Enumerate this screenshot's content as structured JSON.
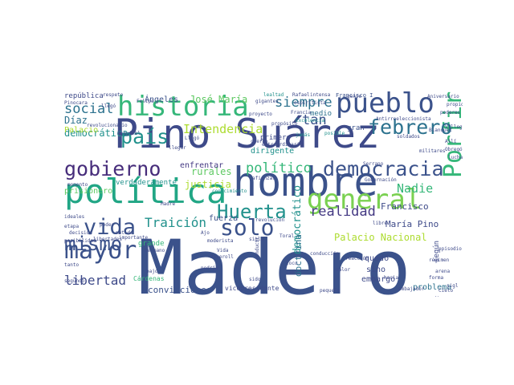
{
  "colors": {
    "palette": [
      "#3b528b",
      "#472d7b",
      "#21918c",
      "#2c728e",
      "#28ae80",
      "#5ec962",
      "#addc30",
      "#fde725"
    ],
    "background": "#ffffff"
  },
  "words": [
    {
      "text": "Madero",
      "color": "#3b528b"
    },
    {
      "text": "Pino Suárez",
      "color": "#3e4a89"
    },
    {
      "text": "hombre",
      "color": "#3b528b"
    },
    {
      "text": "política",
      "color": "#21a685"
    },
    {
      "text": "general",
      "color": "#7ad151"
    },
    {
      "text": "historia",
      "color": "#35b779"
    },
    {
      "text": "pueblo",
      "color": "#3b528b"
    },
    {
      "text": "mayor",
      "color": "#3b528b"
    },
    {
      "text": "gobierno",
      "color": "#472d7b"
    },
    {
      "text": "democracia",
      "color": "#3b528b"
    },
    {
      "text": "Porfirio",
      "color": "#35b779"
    },
    {
      "text": "solo",
      "color": "#3b528b"
    },
    {
      "text": "mismo",
      "color": "#3b528b"
    },
    {
      "text": "vida",
      "color": "#3b528b"
    },
    {
      "text": "Huerta",
      "color": "#21918c"
    },
    {
      "text": "febrero",
      "color": "#2c728e"
    },
    {
      "text": "país",
      "color": "#21918c"
    },
    {
      "text": "realidad",
      "color": "#443983"
    },
    {
      "text": "libertad",
      "color": "#3e4a89"
    },
    {
      "text": "siempre",
      "color": "#2c728e"
    },
    {
      "text": "político",
      "color": "#35b779"
    },
    {
      "text": "social",
      "color": "#2c728e"
    },
    {
      "text": "tan",
      "color": "#3b528b"
    },
    {
      "text": "Traición",
      "color": "#21918c"
    },
    {
      "text": "Intendencia",
      "color": "#addc30"
    },
    {
      "text": "Nadie",
      "color": "#35b779"
    },
    {
      "text": "José María",
      "color": "#5ec962"
    },
    {
      "text": "Palacio Nacional",
      "color": "#addc30"
    },
    {
      "text": "democrático",
      "color": "#21918c"
    },
    {
      "text": "justicia",
      "color": "#addc30"
    },
    {
      "text": "democrática",
      "color": "#21918c"
    },
    {
      "text": "Díaz",
      "color": "#2c728e"
    },
    {
      "text": "rurales",
      "color": "#5ec962"
    },
    {
      "text": "María Pino",
      "color": "#3e4a89"
    },
    {
      "text": "Francisco",
      "color": "#3e4a89"
    },
    {
      "text": "doctrina",
      "color": "#2c728e"
    },
    {
      "text": "convicciones",
      "color": "#3b528b"
    },
    {
      "text": "vicepresidente",
      "color": "#3e4a89"
    },
    {
      "text": "problema",
      "color": "#2c728e"
    },
    {
      "text": "embargo",
      "color": "#3e4a89"
    },
    {
      "text": "quedó",
      "color": "#3e4a89"
    },
    {
      "text": "sino",
      "color": "#3e4a89"
    },
    {
      "text": "según",
      "color": "#3e4a89"
    },
    {
      "text": "fuerza",
      "color": "#3b528b"
    },
    {
      "text": "enfrentar",
      "color": "#443983"
    },
    {
      "text": "dirigente",
      "color": "#21918c"
    },
    {
      "text": "verdaderamente",
      "color": "#21918c"
    },
    {
      "text": "prisionero",
      "color": "#5ec962"
    },
    {
      "text": "república",
      "color": "#3e4a89"
    },
    {
      "text": "Palacio",
      "color": "#addc30"
    },
    {
      "text": "grande",
      "color": "#35b779"
    },
    {
      "text": "Cárdenas",
      "color": "#35b779"
    },
    {
      "text": "gran",
      "color": "#3b528b"
    },
    {
      "text": "primero",
      "color": "#3e4a89"
    },
    {
      "text": "medio",
      "color": "#2c728e"
    },
    {
      "text": "Ángeles",
      "color": "#3b528b"
    },
    {
      "text": "Francisco I",
      "color": "#3b528b"
    },
    {
      "text": "intensa",
      "color": "#3e4a89"
    },
    {
      "text": "Rafael",
      "color": "#3e4a89"
    },
    {
      "text": "lealtad",
      "color": "#21918c"
    },
    {
      "text": "respeto",
      "color": "#3e4a89"
    },
    {
      "text": "Aniversario",
      "color": "#3e4a89"
    },
    {
      "text": "Antirreeleccionista",
      "color": "#3e4a89"
    },
    {
      "text": "Gobernación",
      "color": "#3e4a89"
    },
    {
      "text": "militares",
      "color": "#3e4a89"
    },
    {
      "text": "Serrano",
      "color": "#3e4a89"
    },
    {
      "text": "moderista",
      "color": "#3e4a89"
    },
    {
      "text": "Riveroll",
      "color": "#3e4a89"
    },
    {
      "text": "libertades",
      "color": "#3e4a89"
    },
    {
      "text": "momento",
      "color": "#3e4a89"
    },
    {
      "text": "revolucionario",
      "color": "#3e4a89"
    },
    {
      "text": "poder",
      "color": "#3e4a89"
    },
    {
      "text": "llegó",
      "color": "#3e4a89"
    },
    {
      "text": "Esquivel",
      "color": "#3e4a89"
    },
    {
      "text": "espiritista",
      "color": "#3e4a89"
    },
    {
      "text": "gigantes",
      "color": "#3e4a89"
    },
    {
      "text": "proyecto",
      "color": "#3e4a89"
    },
    {
      "text": "cuerpo",
      "color": "#3e4a89"
    },
    {
      "text": "afianzar",
      "color": "#3e4a89"
    },
    {
      "text": "extraordinario",
      "color": "#3e4a89"
    },
    {
      "text": "revolución",
      "color": "#3e4a89"
    },
    {
      "text": "conocimiento",
      "color": "#21918c"
    },
    {
      "text": "conducción",
      "color": "#3e4a89"
    },
    {
      "text": "Excelencia",
      "color": "#21918c"
    },
    {
      "text": "jamás",
      "color": "#21918c"
    },
    {
      "text": "posible",
      "color": "#21918c"
    },
    {
      "text": "propósito",
      "color": "#3e4a89"
    },
    {
      "text": "gente",
      "color": "#3e4a89"
    },
    {
      "text": "podría",
      "color": "#3e4a89"
    },
    {
      "text": "conducir",
      "color": "#3e4a89"
    },
    {
      "text": "loco",
      "color": "#3e4a89"
    },
    {
      "text": "valor",
      "color": "#3e4a89"
    },
    {
      "text": "reacción",
      "color": "#3e4a89"
    },
    {
      "text": "régimen",
      "color": "#3e4a89"
    },
    {
      "text": "episodio",
      "color": "#3e4a89"
    },
    {
      "text": "pequeño",
      "color": "#3e4a89"
    },
    {
      "text": "embajador",
      "color": "#3e4a89"
    },
    {
      "text": "Blanquet",
      "color": "#3e4a89"
    },
    {
      "text": "Obregón",
      "color": "#3e4a89"
    },
    {
      "text": "poderes",
      "color": "#3e4a89"
    },
    {
      "text": "ideales",
      "color": "#3e4a89"
    },
    {
      "text": "etapa",
      "color": "#3e4a89"
    },
    {
      "text": "decisión",
      "color": "#3e4a89"
    },
    {
      "text": "posibilidad",
      "color": "#3e4a89"
    },
    {
      "text": "metido",
      "color": "#3e4a89"
    },
    {
      "text": "importante",
      "color": "#3e4a89"
    },
    {
      "text": "segundo",
      "color": "#3e4a89"
    },
    {
      "text": "Madre",
      "color": "#3e4a89"
    },
    {
      "text": "Allí",
      "color": "#3e4a89"
    },
    {
      "text": "propio",
      "color": "#3e4a89"
    },
    {
      "text": "Felipe",
      "color": "#3e4a89"
    },
    {
      "text": "luchando",
      "color": "#3e4a89"
    },
    {
      "text": "llegar",
      "color": "#3e4a89"
    },
    {
      "text": "forma",
      "color": "#3e4a89"
    },
    {
      "text": "dispara",
      "color": "#3e4a89"
    },
    {
      "text": "arena",
      "color": "#3e4a89"
    },
    {
      "text": "sigl",
      "color": "#3e4a89"
    },
    {
      "text": "Cielo",
      "color": "#3e4a89"
    },
    {
      "text": "Villegas",
      "color": "#3e4a89"
    },
    {
      "text": "soldados",
      "color": "#3e4a89"
    },
    {
      "text": "Francia",
      "color": "#3e4a89"
    },
    {
      "text": "Toral",
      "color": "#3e4a89"
    },
    {
      "text": "hacia",
      "color": "#3e4a89"
    },
    {
      "text": "libre",
      "color": "#3e4a89"
    },
    {
      "text": "bajo",
      "color": "#3e4a89"
    },
    {
      "text": "Llegó",
      "color": "#3e4a89"
    },
    {
      "text": "cabo",
      "color": "#3e4a89"
    },
    {
      "text": "siglo",
      "color": "#3e4a89"
    },
    {
      "text": "hermano",
      "color": "#3e4a89"
    },
    {
      "text": "Ajo",
      "color": "#3e4a89"
    },
    {
      "text": "sido",
      "color": "#3e4a89"
    },
    {
      "text": "tanto",
      "color": "#3e4a89"
    },
    {
      "text": "Vida",
      "color": "#3e4a89"
    },
    {
      "text": "Pinocara",
      "color": "#3e4a89"
    }
  ]
}
